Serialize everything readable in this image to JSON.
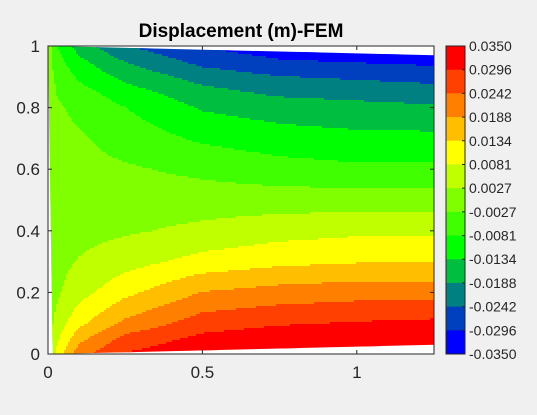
{
  "chart_data": {
    "type": "heatmap",
    "subtype": "filled-contour",
    "title": "Displacement  (m)-FEM",
    "xlabel": "",
    "ylabel": "",
    "xlim": [
      0,
      1.25
    ],
    "ylim": [
      0,
      1
    ],
    "x_ticks": [
      0,
      0.5,
      1
    ],
    "x_tick_labels": [
      "0",
      "0.5",
      "1"
    ],
    "y_ticks": [
      0,
      0.2,
      0.4,
      0.6,
      0.8,
      1
    ],
    "y_tick_labels": [
      "0",
      "0.2",
      "0.4",
      "0.6",
      "0.8",
      "1"
    ],
    "grid": false,
    "colorbar": {
      "placement": "right",
      "levels": [
        0.035,
        0.0296,
        0.0242,
        0.0188,
        0.0134,
        0.0081,
        0.0027,
        -0.0027,
        -0.0081,
        -0.0134,
        -0.0188,
        -0.0242,
        -0.0296,
        -0.035
      ],
      "labels": [
        "0.0350",
        "0.0296",
        "0.0242",
        "0.0188",
        "0.0134",
        "0.0081",
        "0.0027",
        "-0.0027",
        "-0.0081",
        "-0.0134",
        "-0.0188",
        "-0.0242",
        "-0.0296",
        "-0.0350"
      ],
      "colors": [
        "#ff0000",
        "#ff4000",
        "#ff8000",
        "#ffbf00",
        "#ffff00",
        "#bfff00",
        "#80ff00",
        "#40ff00",
        "#00ff00",
        "#00bf40",
        "#008080",
        "#0040bf",
        "#0000ff"
      ]
    },
    "field_bounds": {
      "x_start": [
        0.0,
        0.015
      ],
      "x_end": 1.25,
      "y_min": 0.03,
      "y_max": 0.97
    },
    "field_samples": {
      "x": [
        0.0,
        0.03,
        0.1,
        0.25,
        0.5,
        0.75,
        1.0,
        1.25
      ],
      "y": [
        1.0,
        0.95,
        0.9,
        0.85,
        0.8,
        0.7,
        0.6,
        0.5,
        0.4,
        0.3,
        0.2,
        0.15,
        0.1,
        0.05,
        0.0
      ],
      "value": [
        [
          0.0,
          -0.008,
          -0.016,
          -0.024,
          -0.03,
          -0.033,
          -0.034,
          -0.035
        ],
        [
          0.0,
          -0.006,
          -0.012,
          -0.019,
          -0.026,
          -0.029,
          -0.03,
          -0.031
        ],
        [
          0.0,
          -0.004,
          -0.009,
          -0.015,
          -0.021,
          -0.024,
          -0.025,
          -0.026
        ],
        [
          0.0,
          -0.003,
          -0.006,
          -0.011,
          -0.017,
          -0.02,
          -0.021,
          -0.022
        ],
        [
          0.0,
          -0.002,
          -0.004,
          -0.008,
          -0.014,
          -0.016,
          -0.017,
          -0.018
        ],
        [
          0.0,
          -0.001,
          -0.002,
          -0.005,
          -0.009,
          -0.011,
          -0.012,
          -0.012
        ],
        [
          0.0,
          0.0,
          -0.001,
          -0.002,
          -0.004,
          -0.006,
          -0.007,
          -0.007
        ],
        [
          0.0,
          0.0,
          0.0,
          0.0,
          0.0,
          0.0,
          0.0,
          0.0
        ],
        [
          0.0,
          0.0,
          0.001,
          0.002,
          0.004,
          0.006,
          0.007,
          0.007
        ],
        [
          0.0,
          0.001,
          0.003,
          0.006,
          0.01,
          0.012,
          0.013,
          0.013
        ],
        [
          0.0,
          0.002,
          0.006,
          0.012,
          0.019,
          0.021,
          0.022,
          0.022
        ],
        [
          0.0,
          0.003,
          0.009,
          0.016,
          0.023,
          0.025,
          0.026,
          0.026
        ],
        [
          0.0,
          0.005,
          0.012,
          0.02,
          0.027,
          0.029,
          0.03,
          0.031
        ],
        [
          0.0,
          0.007,
          0.017,
          0.026,
          0.031,
          0.033,
          0.034,
          0.034
        ],
        [
          0.0,
          0.01,
          0.022,
          0.03,
          0.034,
          0.035,
          0.035,
          0.035
        ]
      ]
    }
  }
}
